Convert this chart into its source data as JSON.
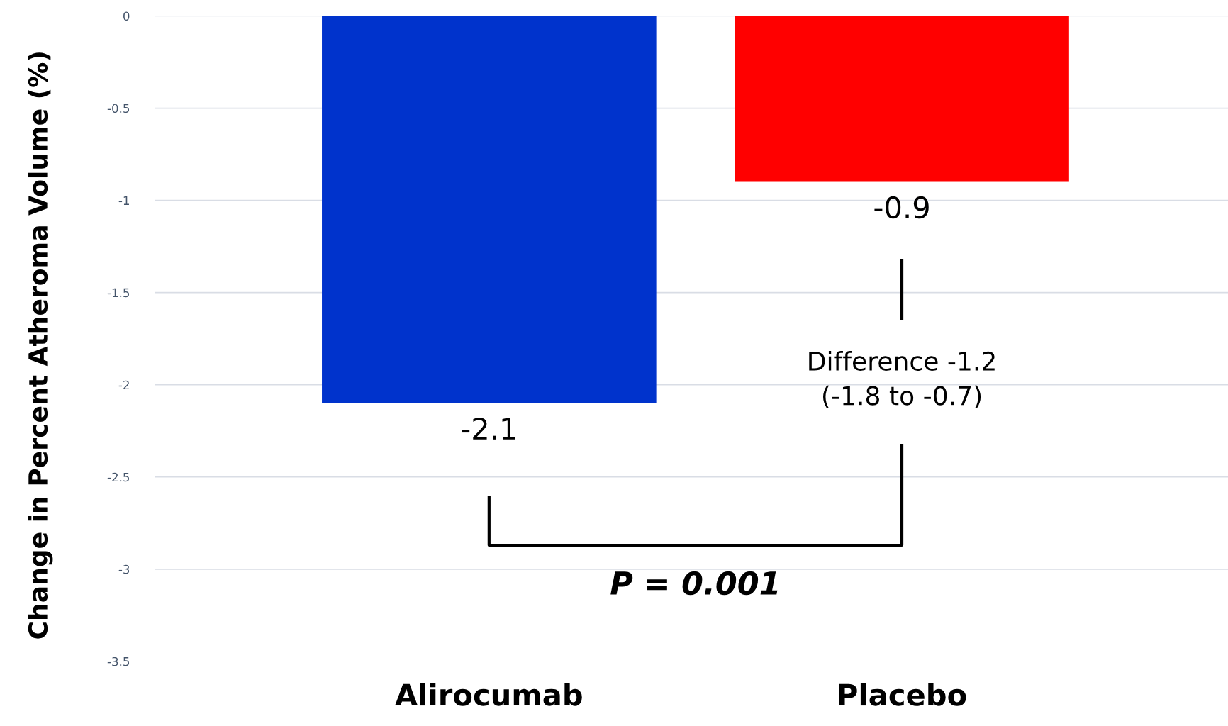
{
  "chart_data": {
    "type": "bar",
    "ylabel": "Change in Percent Atheroma Volume (%)",
    "categories": [
      "Alirocumab",
      "Placebo"
    ],
    "values": [
      -2.1,
      -0.9
    ],
    "colors": [
      "#0033cc",
      "#ff0000"
    ],
    "data_labels": true,
    "ylim": [
      -3.5,
      0
    ],
    "yticks": [
      0,
      -0.5,
      -1,
      -1.5,
      -2,
      -2.5,
      -3,
      -3.5
    ],
    "grid": "y",
    "legend": false,
    "annotations": [
      "Difference -1.2\n(-1.8 to -0.7)",
      "P = 0.001"
    ]
  }
}
